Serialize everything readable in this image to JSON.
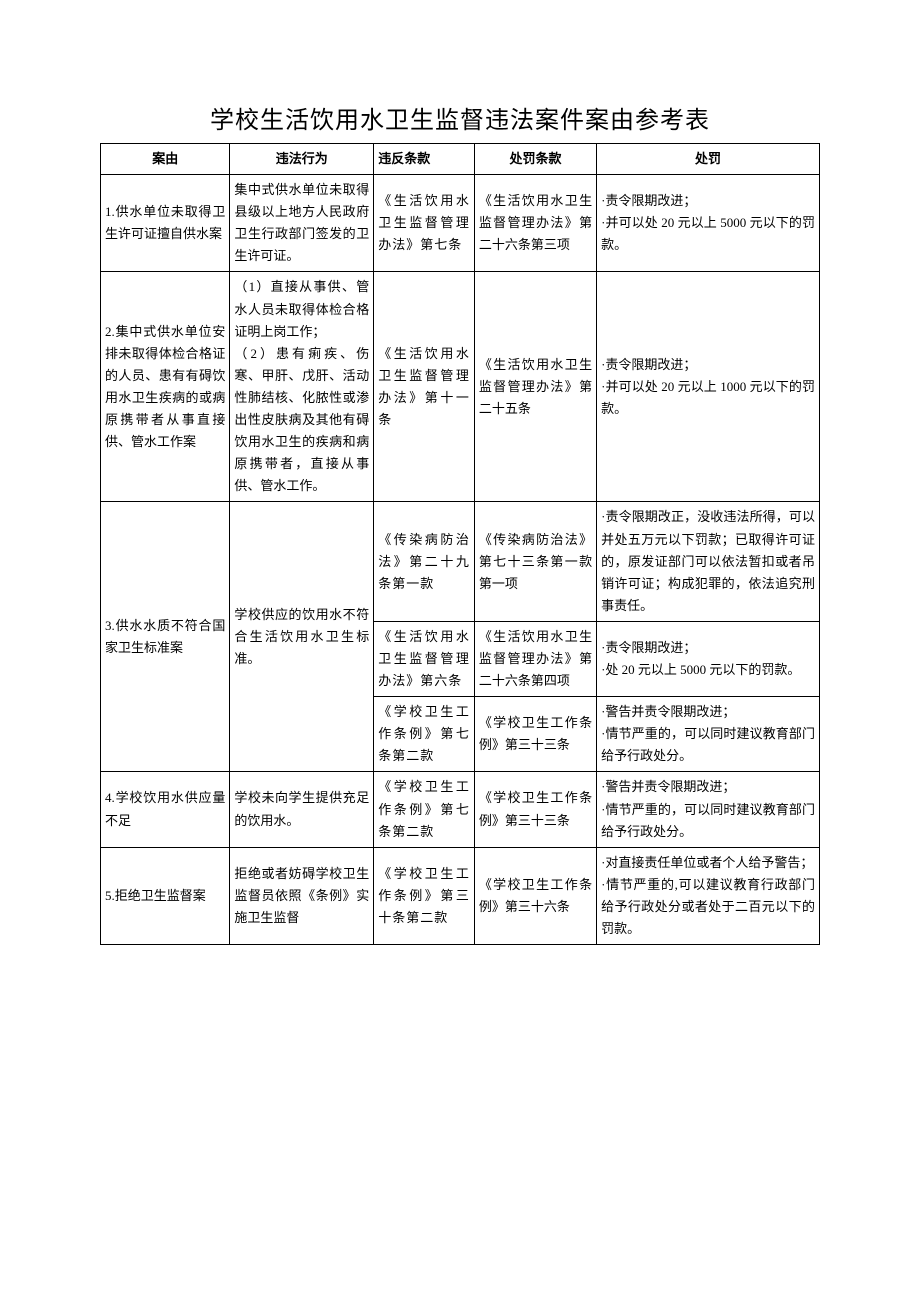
{
  "title": "学校生活饮用水卫生监督违法案件案由参考表",
  "headers": {
    "col1": "案由",
    "col2": "违法行为",
    "col3": "违反条款",
    "col4": "处罚条款",
    "col5": "处罚"
  },
  "rows": {
    "r1": {
      "case": "1.供水单位未取得卫生许可证擅自供水案",
      "behavior": "集中式供水单位未取得县级以上地方人民政府卫生行政部门签发的卫生许可证。",
      "violation": "《生活饮用水卫生监督管理办法》第七条",
      "penalty_clause": "《生活饮用水卫生监督管理办法》第二十六条第三项",
      "penalty": "·责令限期改进；\n·并可以处 20 元以上 5000 元以下的罚款。"
    },
    "r2": {
      "case": "2.集中式供水单位安排未取得体检合格证的人员、患有有碍饮用水卫生疾病的或病原携带者从事直接供、管水工作案",
      "behavior": "（1）直接从事供、管水人员未取得体检合格证明上岗工作；\n（2）患有痢疾、伤寒、甲肝、戊肝、活动性肺结核、化脓性或渗出性皮肤病及其他有碍饮用水卫生的疾病和病原携带者，直接从事供、管水工作。",
      "violation": "《生活饮用水卫生监督管理办法》第十一条",
      "penalty_clause": "《生活饮用水卫生监督管理办法》第二十五条",
      "penalty": "·责令限期改进；\n·并可以处 20 元以上 1000 元以下的罚款。"
    },
    "r3": {
      "case": "3.供水水质不符合国家卫生标准案",
      "behavior": "学校供应的饮用水不符合生活饮用水卫生标准。",
      "sub1": {
        "violation": "《传染病防治法》第二十九条第一款",
        "penalty_clause": "《传染病防治法》第七十三条第一款第一项",
        "penalty": "·责令限期改正，没收违法所得，可以并处五万元以下罚款；已取得许可证的，原发证部门可以依法暂扣或者吊销许可证；构成犯罪的，依法追究刑事责任。"
      },
      "sub2": {
        "violation": "《生活饮用水卫生监督管理办法》第六条",
        "penalty_clause": "《生活饮用水卫生监督管理办法》第二十六条第四项",
        "penalty": "·责令限期改进；\n·处 20 元以上 5000 元以下的罚款。"
      },
      "sub3": {
        "violation": "《学校卫生工作条例》第七条第二款",
        "penalty_clause": "《学校卫生工作条例》第三十三条",
        "penalty": "·警告并责令限期改进；\n·情节严重的，可以同时建议教育部门给予行政处分。"
      }
    },
    "r4": {
      "case": "4.学校饮用水供应量不足",
      "behavior": "学校未向学生提供充足的饮用水。",
      "violation": "《学校卫生工作条例》第七条第二款",
      "penalty_clause": "《学校卫生工作条例》第三十三条",
      "penalty": "·警告并责令限期改进；\n·情节严重的，可以同时建议教育部门给予行政处分。"
    },
    "r5": {
      "case": "5.拒绝卫生监督案",
      "behavior": "拒绝或者妨碍学校卫生监督员依照《条例》实施卫生监督",
      "violation": "《学校卫生工作条例》第三十条第二款",
      "penalty_clause": "《学校卫生工作条例》第三十六条",
      "penalty": "·对直接责任单位或者个人给予警告；\n·情节严重的,可以建议教育行政部门给予行政处分或者处于二百元以下的罚款。"
    }
  }
}
